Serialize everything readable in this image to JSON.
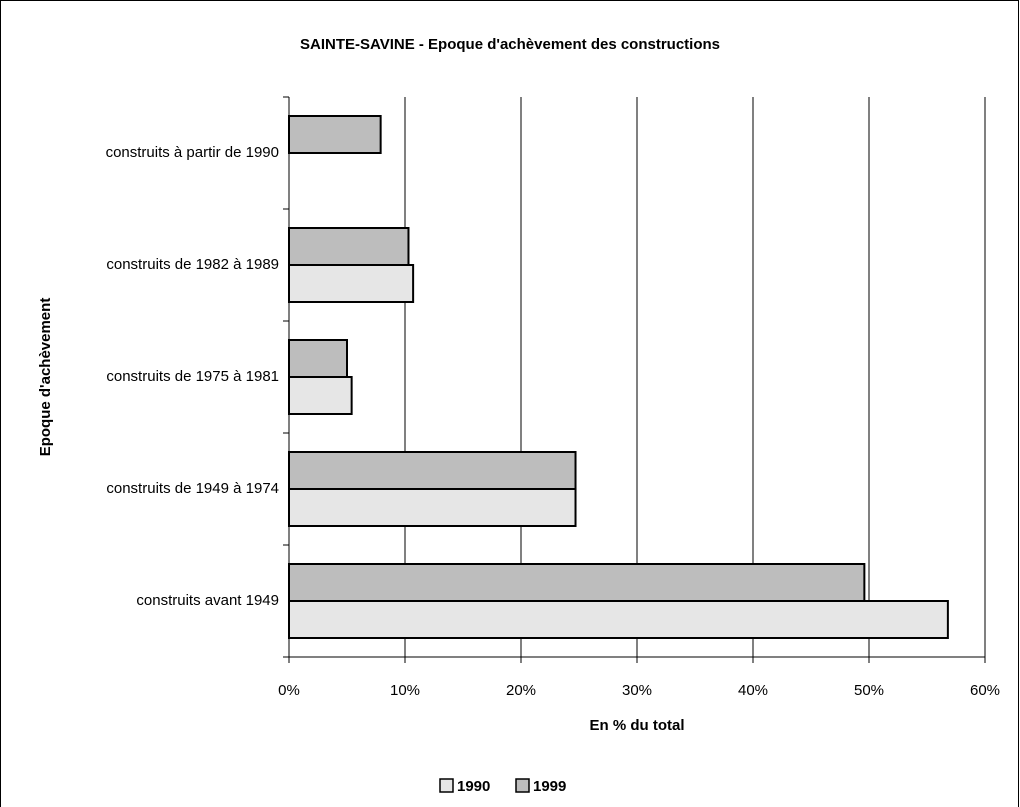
{
  "chart_data": {
    "type": "hbar",
    "title": "SAINTE-SAVINE - Epoque d'achèvement des constructions",
    "xlabel": "En % du total",
    "ylabel": "Epoque d'achèvement",
    "categories": [
      "construits avant 1949",
      "construits de 1949 à 1974",
      "construits de 1975 à 1981",
      "construits de 1982 à 1989",
      "construits à partir de 1990"
    ],
    "series": [
      {
        "name": "1990",
        "color": "#e6e6e6",
        "values": [
          56.8,
          24.7,
          5.4,
          10.7,
          null
        ]
      },
      {
        "name": "1999",
        "color": "#bdbdbd",
        "values": [
          49.6,
          24.7,
          5.0,
          10.3,
          7.9
        ]
      }
    ],
    "xlim": [
      0,
      60
    ],
    "xticks": [
      {
        "value": 0,
        "label": "0%"
      },
      {
        "value": 10,
        "label": "10%"
      },
      {
        "value": 20,
        "label": "20%"
      },
      {
        "value": 30,
        "label": "30%"
      },
      {
        "value": 40,
        "label": "40%"
      },
      {
        "value": 50,
        "label": "50%"
      },
      {
        "value": 60,
        "label": "60%"
      }
    ],
    "grid": true,
    "legend": "bottom"
  }
}
